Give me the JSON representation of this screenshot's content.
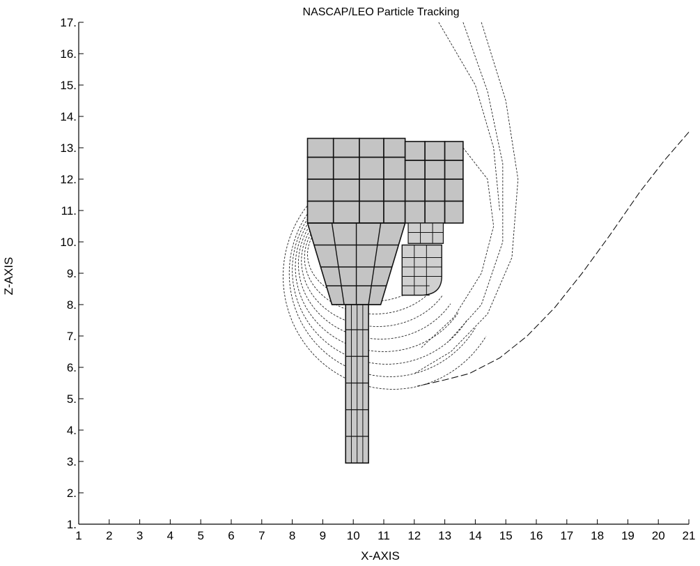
{
  "chart_data": {
    "type": "scatter",
    "title": "NASCAP/LEO Particle Tracking",
    "xlabel": "X-AXIS",
    "ylabel": "Z-AXIS",
    "xlim": [
      1,
      21
    ],
    "ylim": [
      1,
      17
    ],
    "x_ticks": [
      "1",
      "2",
      "3",
      "4",
      "5",
      "6",
      "7",
      "8",
      "9",
      "10",
      "11",
      "12",
      "13",
      "14",
      "15",
      "16",
      "17",
      "18",
      "19",
      "20",
      "21"
    ],
    "y_ticks": [
      "1.",
      "2.",
      "3.",
      "4.",
      "5.",
      "6.",
      "7.",
      "8.",
      "9.",
      "10.",
      "11.",
      "12.",
      "13.",
      "14.",
      "15.",
      "16.",
      "17."
    ],
    "grid": false,
    "geometry": {
      "upper_block": {
        "x": [
          8.5,
          11.7
        ],
        "z": [
          10.6,
          13.3
        ],
        "cols": [
          8.5,
          9.35,
          10.2,
          11.0,
          11.7
        ],
        "rows": [
          10.6,
          11.3,
          12.0,
          12.7,
          13.3
        ]
      },
      "side_panel": {
        "x": [
          11.7,
          13.6
        ],
        "z": [
          10.6,
          13.2
        ],
        "cols": [
          11.7,
          12.35,
          13.0,
          13.6
        ],
        "rows": [
          10.6,
          11.3,
          12.0,
          12.6,
          13.2
        ]
      },
      "cone": {
        "top": [
          8.5,
          11.7,
          10.6
        ],
        "bottom": [
          9.3,
          10.9,
          8.0
        ],
        "rows": [
          10.6,
          9.9,
          9.2,
          8.6,
          8.0
        ]
      },
      "stem": {
        "x": [
          9.75,
          10.5
        ],
        "z": [
          2.95,
          8.0
        ],
        "rows": [
          2.95,
          3.8,
          4.65,
          5.5,
          6.35,
          7.2,
          8.0
        ]
      },
      "small_box": {
        "x": [
          11.8,
          12.95
        ],
        "z": [
          9.95,
          10.6
        ],
        "rows": [
          9.95,
          10.3,
          10.6
        ]
      },
      "side_ribs": {
        "x": [
          11.6,
          12.9
        ],
        "z": [
          8.3,
          9.9
        ],
        "rows": [
          8.3,
          8.6,
          8.9,
          9.2,
          9.5,
          9.9
        ]
      }
    },
    "trajectories": [
      {
        "cx": 10.6,
        "cz": 9.6,
        "rx": 2.1,
        "rz": 1.5
      },
      {
        "cx": 10.7,
        "cz": 9.5,
        "rx": 2.3,
        "rz": 1.8
      },
      {
        "cx": 10.8,
        "cz": 9.4,
        "rx": 2.5,
        "rz": 2.1
      },
      {
        "cx": 10.9,
        "cz": 9.3,
        "rx": 2.7,
        "rz": 2.4
      },
      {
        "cx": 11.0,
        "cz": 9.2,
        "rx": 2.9,
        "rz": 2.7
      },
      {
        "cx": 11.1,
        "cz": 9.1,
        "rx": 3.1,
        "rz": 3.0
      },
      {
        "cx": 11.2,
        "cz": 9.0,
        "rx": 3.3,
        "rz": 3.3
      },
      {
        "cx": 11.3,
        "cz": 8.9,
        "rx": 3.6,
        "rz": 3.6
      }
    ],
    "arc_lines": [
      {
        "points": [
          [
            13.6,
            13.0
          ],
          [
            14.4,
            12.0
          ],
          [
            14.6,
            10.5
          ],
          [
            14.2,
            9.0
          ],
          [
            13.3,
            7.6
          ],
          [
            12.2,
            6.6
          ]
        ]
      },
      {
        "points": [
          [
            14.2,
            17.0
          ],
          [
            15.0,
            14.5
          ],
          [
            15.4,
            12.0
          ],
          [
            15.2,
            9.5
          ],
          [
            14.4,
            7.7
          ],
          [
            13.2,
            6.5
          ],
          [
            12.0,
            5.8
          ]
        ]
      },
      {
        "points": [
          [
            13.6,
            17.0
          ],
          [
            14.4,
            14.8
          ],
          [
            14.9,
            12.5
          ],
          [
            14.9,
            10.0
          ],
          [
            14.2,
            8.0
          ],
          [
            13.1,
            6.8
          ]
        ]
      },
      {
        "points": [
          [
            12.8,
            17.0
          ],
          [
            14.0,
            15.0
          ],
          [
            14.6,
            13.0
          ],
          [
            14.8,
            11.0
          ]
        ]
      }
    ],
    "long_path": {
      "points": [
        [
          21.0,
          13.5
        ],
        [
          20.2,
          12.6
        ],
        [
          19.4,
          11.6
        ],
        [
          18.4,
          10.2
        ],
        [
          17.5,
          9.0
        ],
        [
          16.6,
          7.9
        ],
        [
          15.7,
          7.0
        ],
        [
          14.8,
          6.3
        ],
        [
          13.8,
          5.8
        ],
        [
          13.0,
          5.6
        ],
        [
          12.1,
          5.4
        ]
      ]
    }
  }
}
